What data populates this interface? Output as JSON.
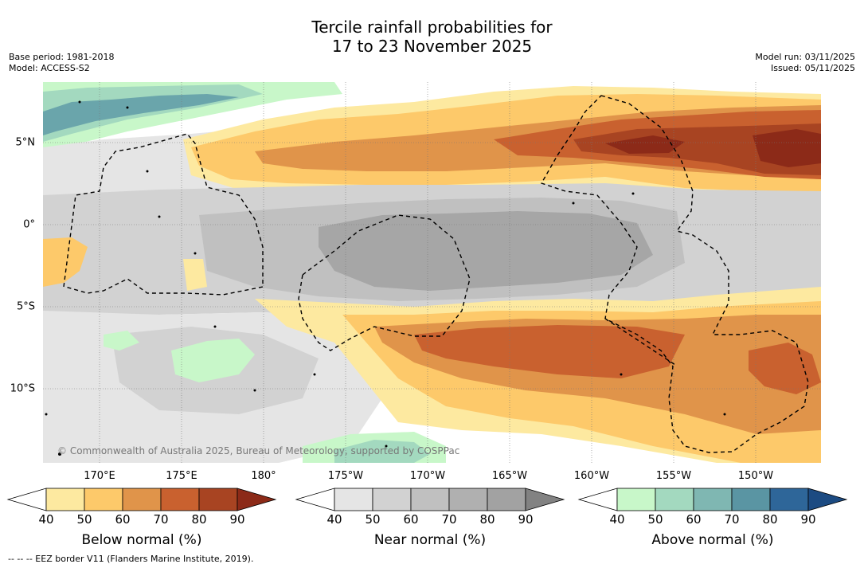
{
  "title_line1": "Tercile rainfall probabilities for",
  "title_line2": "17 to 23 November 2025",
  "meta_left_line1": "Base period: 1981-2018",
  "meta_left_line2": "Model: ACCESS-S2",
  "meta_right_line1": "Model run: 03/11/2025",
  "meta_right_line2": "Issued: 05/11/2025",
  "copyright": "© Commonwealth of Australia 2025, Bureau of Meteorology, supported by COSPPac",
  "footnote": "--  --  -- EEZ border V11 (Flanders Marine Institute, 2019).",
  "map": {
    "lat_labels": [
      "5°N",
      "0°",
      "5°S",
      "10°S"
    ],
    "lon_labels": [
      "170°E",
      "175°E",
      "180°",
      "175°W",
      "170°W",
      "165°W",
      "160°W",
      "155°W",
      "150°W"
    ]
  },
  "colorbars": [
    {
      "title": "Below normal (%)",
      "ticks": [
        "40",
        "50",
        "60",
        "70",
        "80",
        "90"
      ],
      "colors": [
        "#ffffff",
        "#fde9a0",
        "#fdc96a",
        "#e0944a",
        "#c9612f",
        "#a84422",
        "#8c2a18"
      ]
    },
    {
      "title": "Near normal (%)",
      "ticks": [
        "40",
        "50",
        "60",
        "70",
        "80",
        "90"
      ],
      "colors": [
        "#ffffff",
        "#e5e5e5",
        "#d2d2d2",
        "#c0c0c0",
        "#b0b0b0",
        "#a2a2a2",
        "#828282"
      ]
    },
    {
      "title": "Above normal (%)",
      "ticks": [
        "40",
        "50",
        "60",
        "70",
        "80",
        "90"
      ],
      "colors": [
        "#ffffff",
        "#c8f7c9",
        "#a3d9bf",
        "#7fb7b2",
        "#5a95a3",
        "#2e6699",
        "#1c4b82"
      ]
    }
  ],
  "colors": {
    "bn1": "#fde9a0",
    "bn2": "#fdc96a",
    "bn3": "#e0944a",
    "bn4": "#c9612f",
    "bn5": "#a84422",
    "nn1": "#e5e5e5",
    "nn2": "#d2d2d2",
    "nn3": "#c0c0c0",
    "nn4": "#a6a6a6",
    "an1": "#c8f7c9",
    "an2": "#a3d9bf",
    "an3": "#7fb7b2",
    "an4": "#6aa5ab"
  }
}
